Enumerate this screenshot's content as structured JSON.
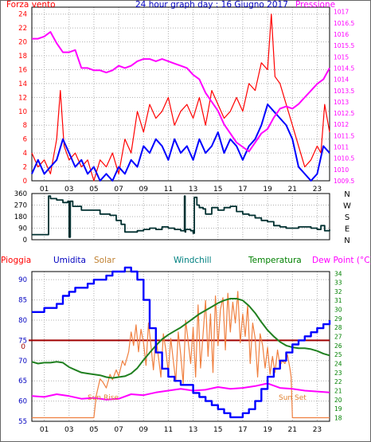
{
  "chart_data": [
    {
      "type": "line",
      "title": "24 hour graph day : 16 Giugno 2017",
      "left_label": "Forza vento",
      "right_label": "Pressione",
      "x_ticks": [
        "01",
        "03",
        "05",
        "07",
        "09",
        "11",
        "13",
        "15",
        "17",
        "19",
        "21",
        "23"
      ],
      "x_range": [
        0,
        24
      ],
      "y_left_ticks": [
        0,
        2,
        4,
        6,
        8,
        10,
        12,
        14,
        16,
        18,
        20,
        22,
        24
      ],
      "y_left_range": [
        0,
        25
      ],
      "y_right_ticks": [
        1009.5,
        1010,
        1010.5,
        1011,
        1011.5,
        1012,
        1012.5,
        1013,
        1013.5,
        1014,
        1014.5,
        1015,
        1015.5,
        1016,
        1016.5,
        1017
      ],
      "y_right_range": [
        1009.5,
        1017.2
      ],
      "colors": {
        "gust": "#ff0000",
        "speed": "#0000ff",
        "pressure": "#ff00ff",
        "grid": "#b0b0b0"
      },
      "series": [
        {
          "role": "gust",
          "axis": "left",
          "x": [
            0.0,
            0.5,
            1.0,
            1.5,
            2.0,
            2.3,
            2.6,
            3.0,
            3.5,
            4.0,
            4.5,
            5.0,
            5.5,
            6.0,
            6.5,
            7.0,
            7.5,
            8.0,
            8.5,
            9.0,
            9.5,
            10.0,
            10.5,
            11.0,
            11.5,
            12.0,
            12.5,
            13.0,
            13.5,
            14.0,
            14.5,
            15.0,
            15.5,
            16.0,
            16.5,
            17.0,
            17.5,
            18.0,
            18.5,
            19.0,
            19.3,
            19.6,
            20.0,
            20.5,
            21.0,
            21.5,
            22.0,
            22.5,
            23.0,
            23.3,
            23.6,
            24.0
          ],
          "y": [
            4,
            2,
            3,
            1,
            6,
            13,
            5,
            3,
            4,
            2,
            3,
            0,
            3,
            2,
            4,
            1,
            6,
            4,
            10,
            7,
            11,
            9,
            10,
            12,
            8,
            10,
            11,
            9,
            12,
            8,
            13,
            11,
            9,
            10,
            12,
            10,
            14,
            13,
            17,
            16,
            24,
            15,
            14,
            11,
            8,
            5,
            2,
            3,
            5,
            4,
            11,
            7
          ]
        },
        {
          "role": "speed",
          "axis": "left",
          "x": [
            0.0,
            0.5,
            1.0,
            1.5,
            2.0,
            2.5,
            3.0,
            3.5,
            4.0,
            4.5,
            5.0,
            5.5,
            6.0,
            6.5,
            7.0,
            7.5,
            8.0,
            8.5,
            9.0,
            9.5,
            10.0,
            10.5,
            11.0,
            11.5,
            12.0,
            12.5,
            13.0,
            13.5,
            14.0,
            14.5,
            15.0,
            15.5,
            16.0,
            16.5,
            17.0,
            17.5,
            18.0,
            18.5,
            19.0,
            19.5,
            20.0,
            20.5,
            21.0,
            21.5,
            22.0,
            22.5,
            23.0,
            23.5,
            24.0
          ],
          "y": [
            1,
            3,
            1,
            2,
            3,
            6,
            4,
            2,
            3,
            1,
            2,
            0,
            1,
            0,
            2,
            1,
            3,
            2,
            5,
            4,
            6,
            5,
            3,
            6,
            4,
            5,
            3,
            6,
            4,
            5,
            7,
            4,
            6,
            5,
            3,
            5,
            6,
            8,
            11,
            10,
            9,
            8,
            6,
            2,
            1,
            0,
            1,
            5,
            4
          ]
        },
        {
          "role": "pressure",
          "axis": "right",
          "x": [
            0,
            0.5,
            1,
            1.5,
            2,
            2.5,
            3,
            3.5,
            4,
            4.5,
            5,
            5.5,
            6,
            6.5,
            7,
            7.5,
            8,
            8.5,
            9,
            9.5,
            10,
            10.5,
            11,
            11.5,
            12,
            12.5,
            13,
            13.5,
            14,
            14.5,
            15,
            15.5,
            16,
            16.5,
            17,
            17.5,
            18,
            18.5,
            19,
            19.5,
            20,
            20.5,
            21,
            21.5,
            22,
            22.5,
            23,
            23.5,
            24
          ],
          "y": [
            1015.8,
            1015.8,
            1015.9,
            1016.1,
            1015.6,
            1015.2,
            1015.2,
            1015.3,
            1014.5,
            1014.5,
            1014.4,
            1014.4,
            1014.3,
            1014.4,
            1014.6,
            1014.5,
            1014.6,
            1014.8,
            1014.9,
            1014.9,
            1014.8,
            1014.9,
            1014.8,
            1014.7,
            1014.6,
            1014.5,
            1014.2,
            1014.0,
            1013.4,
            1013.0,
            1012.6,
            1012.0,
            1011.6,
            1011.2,
            1011.0,
            1010.8,
            1011.2,
            1011.6,
            1011.8,
            1012.3,
            1012.7,
            1012.8,
            1012.7,
            1012.9,
            1013.2,
            1013.5,
            1013.8,
            1014.0,
            1014.5
          ]
        }
      ]
    },
    {
      "type": "line",
      "title": "",
      "y_left_ticks": [
        0,
        90,
        180,
        270,
        360
      ],
      "y_left_range": [
        0,
        360
      ],
      "y_right_ticks": [
        "N",
        "W",
        "S",
        "E",
        "N"
      ],
      "colors": {
        "direction": "#003030",
        "grid": "#b0b0b0"
      },
      "series": [
        {
          "role": "direction",
          "x": [
            0,
            1.3,
            1.35,
            1.5,
            2,
            2.5,
            2.9,
            3.0,
            3.1,
            3.3,
            3.6,
            4.0,
            5.0,
            5.5,
            6.0,
            6.3,
            6.8,
            7.2,
            7.5,
            8.0,
            8.5,
            9.0,
            9.5,
            10.0,
            10.5,
            11.0,
            11.5,
            12.0,
            12.3,
            12.35,
            12.4,
            12.5,
            12.8,
            13.0,
            13.1,
            13.3,
            13.5,
            13.8,
            14.0,
            14.5,
            15.0,
            15.5,
            16.0,
            16.5,
            17.0,
            17.5,
            18.0,
            18.5,
            19.0,
            19.5,
            20.0,
            20.5,
            21.0,
            21.5,
            22.0,
            22.5,
            23.0,
            23.3,
            23.6,
            24.0
          ],
          "y": [
            40,
            40,
            340,
            320,
            310,
            290,
            300,
            20,
            300,
            260,
            260,
            230,
            230,
            200,
            200,
            190,
            150,
            120,
            60,
            60,
            70,
            80,
            90,
            80,
            100,
            90,
            80,
            70,
            340,
            60,
            80,
            80,
            70,
            50,
            330,
            270,
            250,
            240,
            200,
            250,
            230,
            250,
            260,
            220,
            200,
            190,
            170,
            150,
            140,
            110,
            100,
            90,
            90,
            100,
            100,
            90,
            80,
            110,
            70,
            80
          ]
        }
      ]
    },
    {
      "type": "line",
      "title": "",
      "labels": [
        "Pioggia",
        "Umidita",
        "Solar",
        "Windchill",
        "Temperatura",
        "Dew Point (°C)"
      ],
      "annotations": [
        "Sun Rise",
        "Sun Set"
      ],
      "rain_value": "0",
      "y_left_ticks": [
        55,
        60,
        65,
        70,
        75,
        80,
        85,
        90
      ],
      "y_left_range": [
        55,
        92
      ],
      "y_right_ticks": [
        18,
        19,
        20,
        21,
        22,
        23,
        24,
        25,
        26,
        27,
        28,
        29,
        30,
        31,
        32,
        33,
        34
      ],
      "y_right_range": [
        17.6,
        34.2
      ],
      "colors": {
        "rain": "#a00000",
        "humidity": "#0000ff",
        "solar": "#f08040",
        "windchill": "#008080",
        "temperature": "#208020",
        "dewpoint": "#ff00ff",
        "grid": "#b0b0b0"
      },
      "series": [
        {
          "role": "humidity",
          "axis": "left",
          "x": [
            0,
            0.5,
            1,
            1.5,
            2,
            2.5,
            3,
            3.5,
            4,
            4.5,
            5,
            5.5,
            6,
            6.5,
            7,
            7.5,
            8,
            8.5,
            9,
            9.5,
            10,
            10.5,
            11,
            11.5,
            12,
            12.5,
            13,
            13.5,
            14,
            14.5,
            15,
            15.5,
            16,
            16.5,
            17,
            17.5,
            18,
            18.5,
            19,
            19.5,
            20,
            20.5,
            21,
            21.5,
            22,
            22.5,
            23,
            23.5,
            24
          ],
          "y": [
            82,
            82,
            83,
            83,
            84,
            86,
            87,
            88,
            88,
            89,
            90,
            90,
            91,
            92,
            92,
            93,
            92,
            90,
            85,
            78,
            72,
            68,
            66,
            65,
            64,
            64,
            62,
            61,
            60,
            59,
            58,
            57,
            56,
            56,
            57,
            58,
            60,
            63,
            66,
            68,
            70,
            72,
            74,
            75,
            76,
            77,
            78,
            79,
            80
          ]
        },
        {
          "role": "temperature",
          "axis": "right",
          "x": [
            0,
            0.5,
            1,
            1.5,
            2,
            2.5,
            3,
            3.5,
            4,
            4.5,
            5,
            5.5,
            6,
            6.5,
            7,
            7.5,
            8,
            8.5,
            9,
            9.5,
            10,
            10.5,
            11,
            11.5,
            12,
            12.5,
            13,
            13.5,
            14,
            14.5,
            15,
            15.5,
            16,
            16.5,
            17,
            17.5,
            18,
            18.5,
            19,
            19.5,
            20,
            20.5,
            21,
            21.5,
            22,
            22.5,
            23,
            23.5,
            24
          ],
          "y": [
            24.2,
            24.0,
            24.1,
            24.1,
            24.2,
            24.1,
            23.6,
            23.3,
            23.0,
            22.9,
            22.8,
            22.7,
            22.5,
            22.4,
            22.5,
            22.6,
            22.9,
            23.5,
            24.4,
            25.2,
            26.0,
            26.7,
            27.2,
            27.6,
            28.0,
            28.5,
            29.0,
            29.5,
            29.9,
            30.3,
            30.7,
            31.0,
            31.2,
            31.2,
            31.0,
            30.4,
            29.6,
            28.6,
            27.7,
            27.0,
            26.4,
            26.0,
            25.8,
            25.7,
            25.7,
            25.6,
            25.4,
            25.1,
            24.9
          ]
        },
        {
          "role": "dewpoint",
          "axis": "right",
          "x": [
            0,
            1,
            2,
            3,
            4,
            5,
            6,
            7,
            8,
            9,
            10,
            11,
            12,
            13,
            14,
            15,
            16,
            17,
            18,
            19,
            20,
            21,
            22,
            23,
            24
          ],
          "y": [
            20.4,
            20.3,
            20.6,
            20.4,
            20.1,
            20.2,
            20.0,
            20.1,
            20.6,
            20.5,
            20.8,
            21.0,
            21.2,
            21.0,
            21.1,
            21.4,
            21.2,
            21.3,
            21.5,
            21.8,
            21.3,
            21.2,
            21.0,
            20.9,
            20.8
          ]
        },
        {
          "role": "solar",
          "axis": "right",
          "x": [
            0,
            5.0,
            5.2,
            5.5,
            5.7,
            6.0,
            6.3,
            6.5,
            6.8,
            7.0,
            7.3,
            7.5,
            7.8,
            8.0,
            8.2,
            8.4,
            8.6,
            8.8,
            9.0,
            9.2,
            9.4,
            9.6,
            9.8,
            10.0,
            10.2,
            10.4,
            10.6,
            10.8,
            11.0,
            11.2,
            11.4,
            11.6,
            11.8,
            12.0,
            12.2,
            12.4,
            12.6,
            12.8,
            13.0,
            13.2,
            13.4,
            13.6,
            13.8,
            14.0,
            14.2,
            14.4,
            14.6,
            14.8,
            15.0,
            15.2,
            15.4,
            15.6,
            15.8,
            16.0,
            16.2,
            16.4,
            16.6,
            16.8,
            17.0,
            17.2,
            17.4,
            17.6,
            17.8,
            18.0,
            18.2,
            18.4,
            18.6,
            18.8,
            19.0,
            19.2,
            19.4,
            19.6,
            19.8,
            20.0,
            20.2,
            20.4,
            20.6,
            20.8,
            20.9,
            21.0,
            24
          ],
          "y": [
            18,
            18,
            20.5,
            22.3,
            22.0,
            21.3,
            22.8,
            22.2,
            23.3,
            22.6,
            24.3,
            23.8,
            25.3,
            27.5,
            26.0,
            28.3,
            25.3,
            27.8,
            26.3,
            23.8,
            28.5,
            26.0,
            23.3,
            27.0,
            24.8,
            22.5,
            27.3,
            25.5,
            23.0,
            26.8,
            24.3,
            22.0,
            27.5,
            25.0,
            21.8,
            28.8,
            26.5,
            24.0,
            28.0,
            22.5,
            30.5,
            23.5,
            27.3,
            31.0,
            24.8,
            29.5,
            23.0,
            31.5,
            26.0,
            30.0,
            31.3,
            25.5,
            31.8,
            27.5,
            30.8,
            28.5,
            32.0,
            26.3,
            29.5,
            27.0,
            30.5,
            24.0,
            28.5,
            26.8,
            22.5,
            27.3,
            26.0,
            23.5,
            25.8,
            22.8,
            24.8,
            23.0,
            25.5,
            23.8,
            24.3,
            24.0,
            25.0,
            23.5,
            22.5,
            18,
            18
          ]
        }
      ]
    }
  ]
}
